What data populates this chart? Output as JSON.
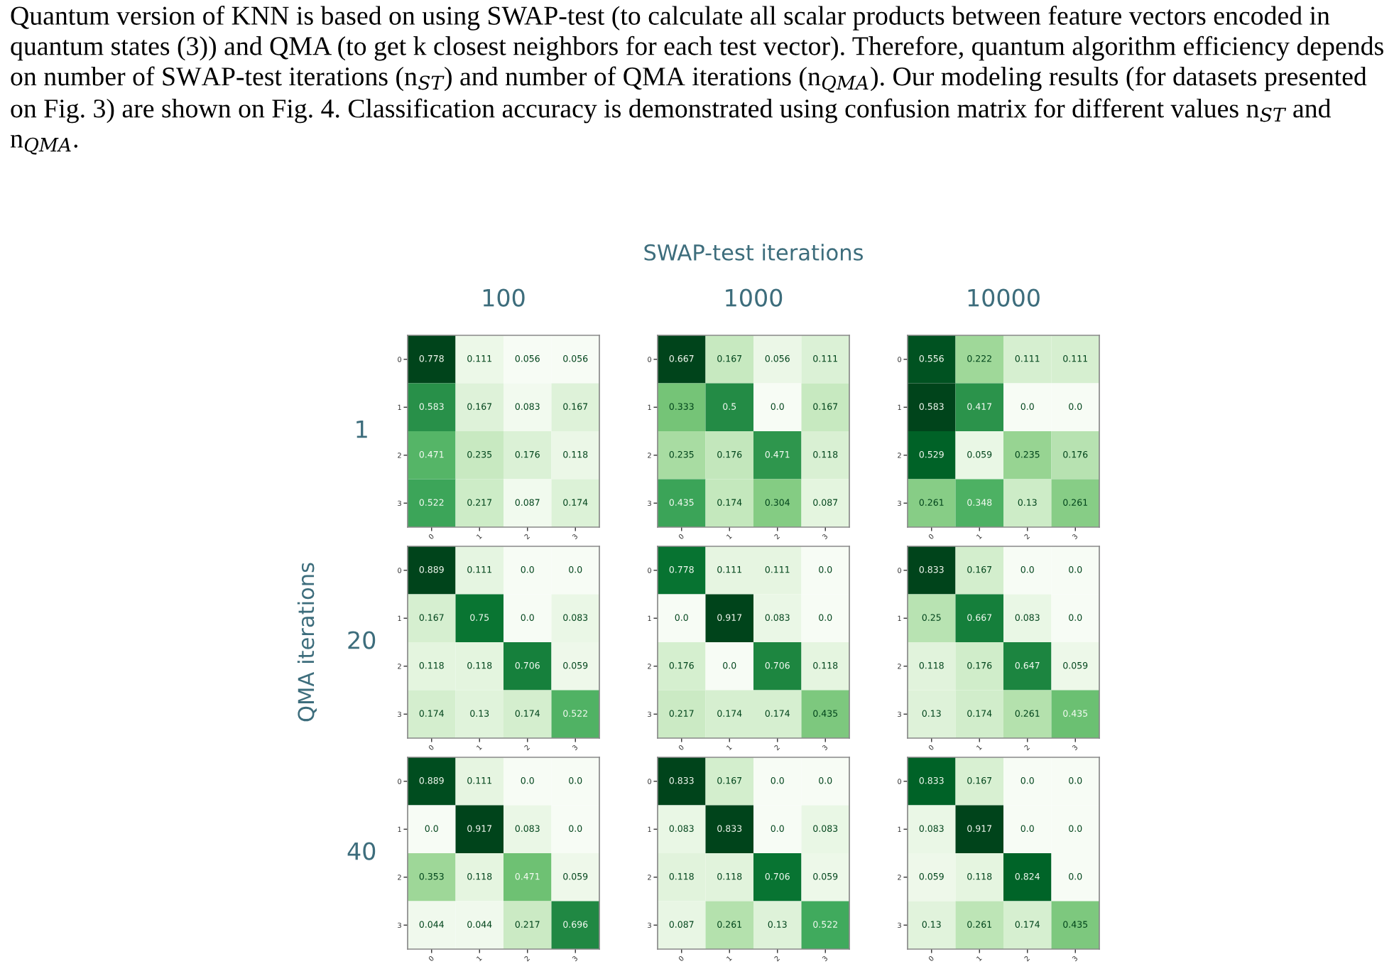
{
  "chart_data": [
    {
      "type": "other",
      "annotations": [
        "Quantum version of KNN is based on using SWAP-test (to calculate all scalar products between feature vectors encoded in quantum states (3)) and QMA (to get k closest neighbors for each test vector). Therefore, quantum algorithm efficiency depends on number of SWAP-test iterations (n$_{ST}$) and number of QMA iterations (n$_{QMA}$). Our modeling results (for datasets presented on Fig. 3) are shown on Fig. 4. Classification accuracy is demonstrated using confusion matrix for different values n$_{ST}$ and n$_{QMA}$."
      ]
    },
    {
      "type": "heatmap",
      "title": "100",
      "ylabel": "1",
      "categories": [
        "0",
        "1",
        "2",
        "3"
      ],
      "y_categories": [
        "0",
        "1",
        "2",
        "3"
      ],
      "cells": [
        [
          0.778,
          0.111,
          0.056,
          0.056
        ],
        [
          0.583,
          0.167,
          0.083,
          0.167
        ],
        [
          0.471,
          0.235,
          0.176,
          0.118
        ],
        [
          0.522,
          0.217,
          0.087,
          0.174
        ]
      ],
      "cell_labels": [
        [
          "0.778",
          "0.111",
          "0.056",
          "0.056"
        ],
        [
          "0.583",
          "0.167",
          "0.083",
          "0.167"
        ],
        [
          "0.471",
          "0.235",
          "0.176",
          "0.118"
        ],
        [
          "0.522",
          "0.217",
          "0.087",
          "0.174"
        ]
      ]
    },
    {
      "type": "heatmap",
      "title": "SWAP-test iterations",
      "subtitle": "1000",
      "categories": [
        "0",
        "1",
        "2",
        "3"
      ],
      "y_categories": [
        "0",
        "1",
        "2",
        "3"
      ],
      "cells": [
        [
          0.667,
          0.167,
          0.056,
          0.111
        ],
        [
          0.333,
          0.5,
          0.0,
          0.167
        ],
        [
          0.235,
          0.176,
          0.471,
          0.118
        ],
        [
          0.435,
          0.174,
          0.304,
          0.087
        ]
      ],
      "cell_labels": [
        [
          "0.667",
          "0.167",
          "0.056",
          "0.111"
        ],
        [
          "0.333",
          "0.5",
          "0.0",
          "0.167"
        ],
        [
          "0.235",
          "0.176",
          "0.471",
          "0.118"
        ],
        [
          "0.435",
          "0.174",
          "0.304",
          "0.087"
        ]
      ]
    },
    {
      "type": "heatmap",
      "title": "10000",
      "categories": [
        "0",
        "1",
        "2",
        "3"
      ],
      "y_categories": [
        "0",
        "1",
        "2",
        "3"
      ],
      "cells": [
        [
          0.556,
          0.222,
          0.111,
          0.111
        ],
        [
          0.583,
          0.417,
          0.0,
          0.0
        ],
        [
          0.529,
          0.059,
          0.235,
          0.176
        ],
        [
          0.261,
          0.348,
          0.13,
          0.261
        ]
      ],
      "cell_labels": [
        [
          "0.556",
          "0.222",
          "0.111",
          "0.111"
        ],
        [
          "0.583",
          "0.417",
          "0.0",
          "0.0"
        ],
        [
          "0.529",
          "0.059",
          "0.235",
          "0.176"
        ],
        [
          "0.261",
          "0.348",
          "0.13",
          "0.261"
        ]
      ]
    },
    {
      "type": "heatmap",
      "ylabel": "20",
      "annotations": [
        "QMA iterations"
      ],
      "categories": [
        "0",
        "1",
        "2",
        "3"
      ],
      "y_categories": [
        "0",
        "1",
        "2",
        "3"
      ],
      "cells": [
        [
          0.889,
          0.111,
          0.0,
          0.0
        ],
        [
          0.167,
          0.75,
          0.0,
          0.083
        ],
        [
          0.118,
          0.118,
          0.706,
          0.059
        ],
        [
          0.174,
          0.13,
          0.174,
          0.522
        ]
      ],
      "cell_labels": [
        [
          "0.889",
          "0.111",
          "0.0",
          "0.0"
        ],
        [
          "0.167",
          "0.75",
          "0.0",
          "0.083"
        ],
        [
          "0.118",
          "0.118",
          "0.706",
          "0.059"
        ],
        [
          "0.174",
          "0.13",
          "0.174",
          "0.522"
        ]
      ]
    },
    {
      "type": "heatmap",
      "categories": [
        "0",
        "1",
        "2",
        "3"
      ],
      "y_categories": [
        "0",
        "1",
        "2",
        "3"
      ],
      "cells": [
        [
          0.778,
          0.111,
          0.111,
          0.0
        ],
        [
          0.0,
          0.917,
          0.083,
          0.0
        ],
        [
          0.176,
          0.0,
          0.706,
          0.118
        ],
        [
          0.217,
          0.174,
          0.174,
          0.435
        ]
      ],
      "cell_labels": [
        [
          "0.778",
          "0.111",
          "0.111",
          "0.0"
        ],
        [
          "0.0",
          "0.917",
          "0.083",
          "0.0"
        ],
        [
          "0.176",
          "0.0",
          "0.706",
          "0.118"
        ],
        [
          "0.217",
          "0.174",
          "0.174",
          "0.435"
        ]
      ]
    },
    {
      "type": "heatmap",
      "categories": [
        "0",
        "1",
        "2",
        "3"
      ],
      "y_categories": [
        "0",
        "1",
        "2",
        "3"
      ],
      "cells": [
        [
          0.833,
          0.167,
          0.0,
          0.0
        ],
        [
          0.25,
          0.667,
          0.083,
          0.0
        ],
        [
          0.118,
          0.176,
          0.647,
          0.059
        ],
        [
          0.13,
          0.174,
          0.261,
          0.435
        ]
      ],
      "cell_labels": [
        [
          "0.833",
          "0.167",
          "0.0",
          "0.0"
        ],
        [
          "0.25",
          "0.667",
          "0.083",
          "0.0"
        ],
        [
          "0.118",
          "0.176",
          "0.647",
          "0.059"
        ],
        [
          "0.13",
          "0.174",
          "0.261",
          "0.435"
        ]
      ]
    },
    {
      "type": "heatmap",
      "ylabel": "40",
      "categories": [
        "0",
        "1",
        "2",
        "3"
      ],
      "y_categories": [
        "0",
        "1",
        "2",
        "3"
      ],
      "cells": [
        [
          0.889,
          0.111,
          0.0,
          0.0
        ],
        [
          0.0,
          0.917,
          0.083,
          0.0
        ],
        [
          0.353,
          0.118,
          0.471,
          0.059
        ],
        [
          0.044,
          0.044,
          0.217,
          0.696
        ]
      ],
      "cell_labels": [
        [
          "0.889",
          "0.111",
          "0.0",
          "0.0"
        ],
        [
          "0.0",
          "0.917",
          "0.083",
          "0.0"
        ],
        [
          "0.353",
          "0.118",
          "0.471",
          "0.059"
        ],
        [
          "0.044",
          "0.044",
          "0.217",
          "0.696"
        ]
      ]
    },
    {
      "type": "heatmap",
      "categories": [
        "0",
        "1",
        "2",
        "3"
      ],
      "y_categories": [
        "0",
        "1",
        "2",
        "3"
      ],
      "cells": [
        [
          0.833,
          0.167,
          0.0,
          0.0
        ],
        [
          0.083,
          0.833,
          0.0,
          0.083
        ],
        [
          0.118,
          0.118,
          0.706,
          0.059
        ],
        [
          0.087,
          0.261,
          0.13,
          0.522
        ]
      ],
      "cell_labels": [
        [
          "0.833",
          "0.167",
          "0.0",
          "0.0"
        ],
        [
          "0.083",
          "0.833",
          "0.0",
          "0.083"
        ],
        [
          "0.118",
          "0.118",
          "0.706",
          "0.059"
        ],
        [
          "0.087",
          "0.261",
          "0.13",
          "0.522"
        ]
      ]
    },
    {
      "type": "heatmap",
      "categories": [
        "0",
        "1",
        "2",
        "3"
      ],
      "y_categories": [
        "0",
        "1",
        "2",
        "3"
      ],
      "cells": [
        [
          0.833,
          0.167,
          0.0,
          0.0
        ],
        [
          0.083,
          0.917,
          0.0,
          0.0
        ],
        [
          0.059,
          0.118,
          0.824,
          0.0
        ],
        [
          0.13,
          0.261,
          0.174,
          0.435
        ]
      ],
      "cell_labels": [
        [
          "0.833",
          "0.167",
          "0.0",
          "0.0"
        ],
        [
          "0.083",
          "0.917",
          "0.0",
          "0.0"
        ],
        [
          "0.059",
          "0.118",
          "0.824",
          "0.0"
        ],
        [
          "0.13",
          "0.261",
          "0.174",
          "0.435"
        ]
      ]
    }
  ]
}
